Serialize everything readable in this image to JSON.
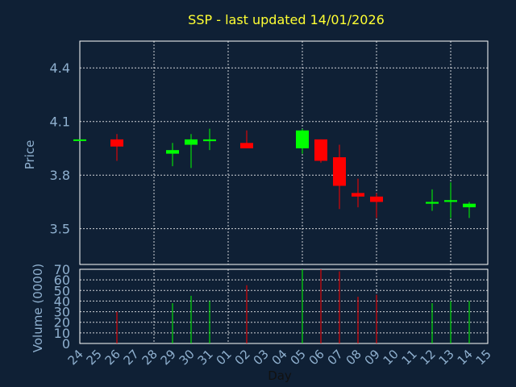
{
  "chart_data": {
    "type": "candlestick",
    "title": "SSP - last updated 14/01/2026",
    "xlabel": "Day",
    "price_panel": {
      "ylabel": "Price",
      "ylim": [
        3.3,
        4.55
      ],
      "yticks": [
        "4.4",
        "4.1",
        "3.8",
        "3.5"
      ],
      "ytick_values": [
        4.4,
        4.1,
        3.8,
        3.5
      ],
      "grid": true
    },
    "volume_panel": {
      "ylabel": "Volume (0000)",
      "ylim": [
        0,
        70
      ],
      "yticks": [
        "70",
        "60",
        "50",
        "40",
        "30",
        "20",
        "10",
        "0"
      ],
      "ytick_values": [
        70,
        60,
        50,
        40,
        30,
        20,
        10,
        0
      ],
      "grid": true
    },
    "x_ticks": [
      "24",
      "25",
      "26",
      "27",
      "28",
      "29",
      "30",
      "31",
      "01",
      "02",
      "03",
      "04",
      "05",
      "06",
      "07",
      "08",
      "09",
      "10",
      "11",
      "12",
      "13",
      "14",
      "15"
    ],
    "colors": {
      "up": "#00ff00",
      "down": "#ff0000",
      "background": "#0f2035",
      "grid": "#ffffff",
      "title": "#ffff33",
      "ticks": "#8fb0cf"
    },
    "candles": [
      {
        "day": "24",
        "open": 4.0,
        "high": 4.0,
        "low": 4.0,
        "close": 4.0,
        "volume": 0
      },
      {
        "day": "26",
        "open": 4.0,
        "high": 4.03,
        "low": 3.88,
        "close": 3.96,
        "volume": 30
      },
      {
        "day": "29",
        "open": 3.92,
        "high": 3.98,
        "low": 3.85,
        "close": 3.94,
        "volume": 38
      },
      {
        "day": "30",
        "open": 3.97,
        "high": 4.03,
        "low": 3.84,
        "close": 4.0,
        "volume": 45
      },
      {
        "day": "31",
        "open": 3.99,
        "high": 4.06,
        "low": 3.94,
        "close": 4.0,
        "volume": 40
      },
      {
        "day": "02",
        "open": 3.98,
        "high": 4.05,
        "low": 3.95,
        "close": 3.95,
        "volume": 55
      },
      {
        "day": "05",
        "open": 3.95,
        "high": 4.06,
        "low": 3.92,
        "close": 4.05,
        "volume": 70
      },
      {
        "day": "06",
        "open": 4.0,
        "high": 4.0,
        "low": 3.87,
        "close": 3.88,
        "volume": 70
      },
      {
        "day": "07",
        "open": 3.9,
        "high": 3.97,
        "low": 3.61,
        "close": 3.74,
        "volume": 68
      },
      {
        "day": "08",
        "open": 3.7,
        "high": 3.78,
        "low": 3.62,
        "close": 3.68,
        "volume": 44
      },
      {
        "day": "09",
        "open": 3.68,
        "high": 3.7,
        "low": 3.56,
        "close": 3.65,
        "volume": 46
      },
      {
        "day": "12",
        "open": 3.64,
        "high": 3.72,
        "low": 3.6,
        "close": 3.65,
        "volume": 38
      },
      {
        "day": "13",
        "open": 3.65,
        "high": 3.76,
        "low": 3.56,
        "close": 3.66,
        "volume": 40
      },
      {
        "day": "14",
        "open": 3.62,
        "high": 3.65,
        "low": 3.56,
        "close": 3.64,
        "volume": 40
      }
    ]
  }
}
